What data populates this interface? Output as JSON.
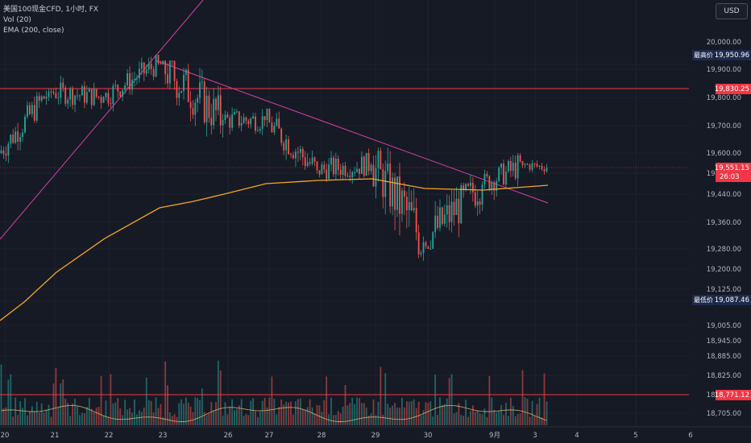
{
  "header": {
    "symbol_line": "美国100现金CFD, 1小时, FX",
    "volume_line": "Vol (20)",
    "ema_line": "EMA (200, close)",
    "currency": "USD"
  },
  "colors": {
    "background": "#161a25",
    "up": "#26a69a",
    "down": "#ef5350",
    "ema": "#f5a623",
    "trendline": "#d63fa6",
    "level": "#f23645"
  },
  "chart_data": {
    "type": "candlestick",
    "y_ticks": [
      "20,000.00",
      "19,900.00",
      "19,800.00",
      "19,700.00",
      "19,600.00",
      "19,520.00",
      "19,440.00",
      "19,360.00",
      "19,280.00",
      "19,200.00",
      "19,125.00",
      "19,065.00",
      "19,005.00",
      "18,945.00",
      "18,885.00",
      "18,825.00",
      "18,765.00",
      "18,705.00"
    ],
    "x_ticks": [
      "20",
      "21",
      "22",
      "23",
      "26",
      "27",
      "28",
      "29",
      "30",
      "9月",
      "3",
      "4",
      "5",
      "6"
    ],
    "price_labels": [
      {
        "label": "最高价",
        "value": "19,950.96"
      },
      {
        "label": "",
        "value": "19,830.25"
      },
      {
        "label": "",
        "value": "19,551.15",
        "sub": "26:03"
      },
      {
        "label": "最低价",
        "value": "19,087.46"
      },
      {
        "label": "",
        "value": "18,771.12"
      }
    ],
    "horizontal_levels": [
      19830.25,
      18771.12
    ],
    "ema_200": {
      "dates": [
        "20",
        "21",
        "22",
        "23",
        "26",
        "27",
        "28",
        "29",
        "30",
        "9月",
        "3"
      ],
      "values": [
        19070,
        19245,
        19350,
        19430,
        19470,
        19490,
        19495,
        19495,
        19490,
        19485,
        19490
      ]
    },
    "candles_daily_summary": [
      {
        "day": "20",
        "open": 19600,
        "high": 19830,
        "low": 19560,
        "close": 19820
      },
      {
        "day": "21",
        "open": 19820,
        "high": 19880,
        "low": 19660,
        "close": 19800
      },
      {
        "day": "22",
        "open": 19800,
        "high": 19950.96,
        "low": 19720,
        "close": 19920
      },
      {
        "day": "23",
        "open": 19920,
        "high": 19930,
        "low": 19480,
        "close": 19720
      },
      {
        "day": "26",
        "open": 19720,
        "high": 19800,
        "low": 19580,
        "close": 19720
      },
      {
        "day": "27",
        "open": 19720,
        "high": 19760,
        "low": 19470,
        "close": 19540
      },
      {
        "day": "28",
        "open": 19540,
        "high": 19640,
        "low": 19400,
        "close": 19560
      },
      {
        "day": "29",
        "open": 19560,
        "high": 19620,
        "low": 19087.46,
        "close": 19300
      },
      {
        "day": "30",
        "open": 19300,
        "high": 19640,
        "low": 19280,
        "close": 19480
      },
      {
        "day": "9月",
        "open": 19480,
        "high": 19600,
        "low": 19320,
        "close": 19560
      },
      {
        "day": "3",
        "open": 19560,
        "high": 19640,
        "low": 19520,
        "close": 19551.15
      }
    ]
  }
}
